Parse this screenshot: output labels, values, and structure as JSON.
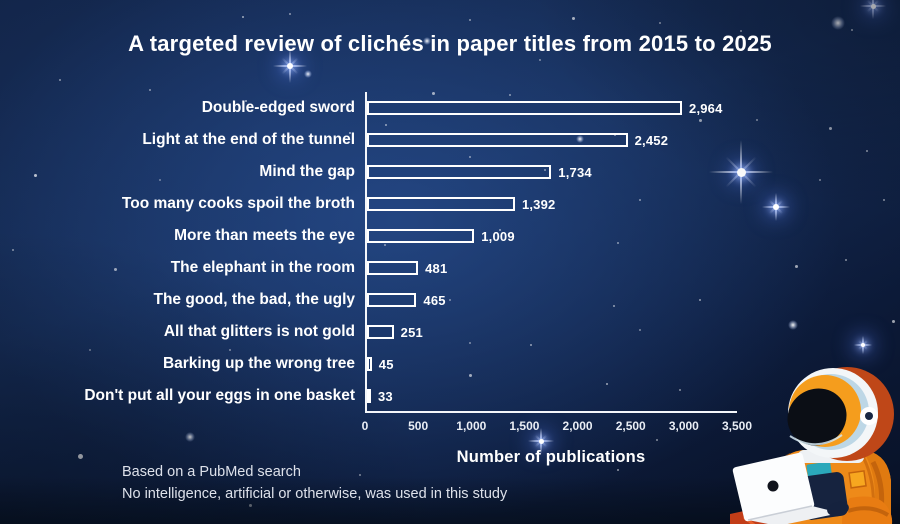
{
  "title": "A targeted review of clichés in paper titles from 2015 to 2025",
  "chart_data": {
    "type": "bar",
    "orientation": "horizontal",
    "title": "A targeted review of clichés in paper titles from 2015 to 2025",
    "categories": [
      "Double-edged sword",
      "Light at the end of the tunnel",
      "Mind the gap",
      "Too many cooks spoil the broth",
      "More than meets the eye",
      "The elephant in the room",
      "The good, the bad, the ugly",
      "All that glitters is not gold",
      "Barking up the wrong tree",
      "Don't put all your eggs in one basket"
    ],
    "values": [
      2964,
      2452,
      1734,
      1392,
      1009,
      481,
      465,
      251,
      45,
      33
    ],
    "value_labels": [
      "2,964",
      "2,452",
      "1,734",
      "1,392",
      "1,009",
      "481",
      "465",
      "251",
      "45",
      "33"
    ],
    "xlabel": "Number of publications",
    "ylabel": "",
    "xlim": [
      0,
      3500
    ],
    "x_ticks": [
      0,
      500,
      1000,
      1500,
      2000,
      2500,
      3000,
      3500
    ],
    "x_tick_labels": [
      "0",
      "500",
      "1,000",
      "1,500",
      "2,000",
      "2,500",
      "3,000",
      "3,500"
    ],
    "grid": false,
    "legend": "none",
    "bar_fill": "transparent",
    "bar_outline_color": "#ffffff",
    "text_color": "#ffffff"
  },
  "footer": {
    "line1": "Based on a PubMed search",
    "line2": "No intelligence, artificial or otherwise, was used in this study"
  },
  "colors": {
    "background_base": "#0d1b38",
    "background_glow": "#1f4074",
    "star": "#ffffff",
    "astronaut_suit_orange": "#ee8a19",
    "astronaut_helmet_white": "#f3f6f8",
    "astronaut_visor_black": "#0b0e15",
    "astronaut_accent_teal": "#2ba8ba"
  },
  "illustration": {
    "name": "astronaut-with-laptop"
  }
}
